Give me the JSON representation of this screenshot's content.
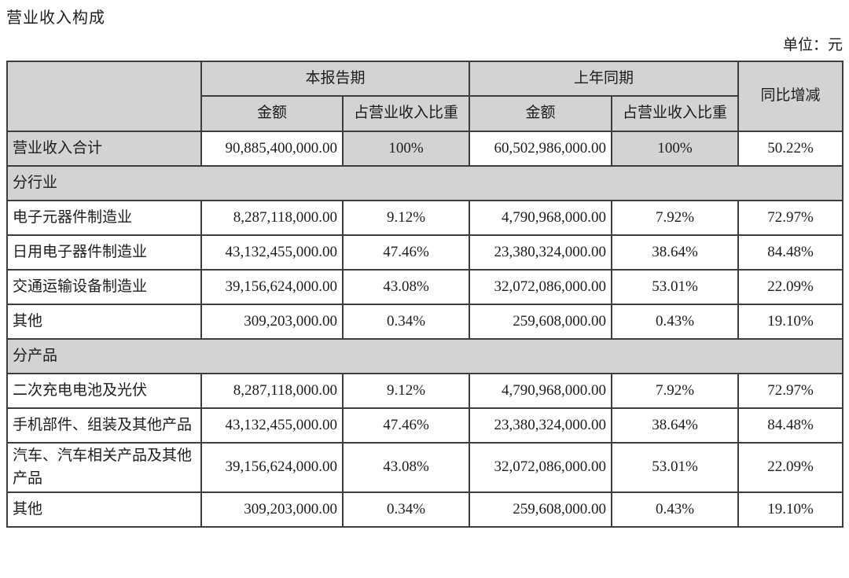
{
  "page": {
    "title": "营业收入构成",
    "unit_label": "单位：元"
  },
  "colors": {
    "header_bg": "#d3d3d3",
    "border": "#3d3d3d",
    "text": "#1c1c1c",
    "page_bg": "#ffffff"
  },
  "table": {
    "header": {
      "corner": "",
      "current_period_group": "本报告期",
      "prior_period_group": "上年同期",
      "yoy_change": "同比增减",
      "sub_headers": [
        "金额",
        "占营业收入比重",
        "金额",
        "占营业收入比重"
      ]
    },
    "rows": [
      {
        "type": "total",
        "label": "营业收入合计",
        "cells": [
          "90,885,400,000.00",
          "100%",
          "60,502,986,000.00",
          "100%",
          "50.22%"
        ]
      },
      {
        "type": "section",
        "label": "分行业"
      },
      {
        "type": "data",
        "label": "电子元器件制造业",
        "cells": [
          "8,287,118,000.00",
          "9.12%",
          "4,790,968,000.00",
          "7.92%",
          "72.97%"
        ]
      },
      {
        "type": "data",
        "label": "日用电子器件制造业",
        "cells": [
          "43,132,455,000.00",
          "47.46%",
          "23,380,324,000.00",
          "38.64%",
          "84.48%"
        ]
      },
      {
        "type": "data",
        "label": "交通运输设备制造业",
        "cells": [
          "39,156,624,000.00",
          "43.08%",
          "32,072,086,000.00",
          "53.01%",
          "22.09%"
        ]
      },
      {
        "type": "data",
        "label": "其他",
        "cells": [
          "309,203,000.00",
          "0.34%",
          "259,608,000.00",
          "0.43%",
          "19.10%"
        ]
      },
      {
        "type": "section",
        "label": "分产品"
      },
      {
        "type": "data",
        "label": "二次充电电池及光伏",
        "cells": [
          "8,287,118,000.00",
          "9.12%",
          "4,790,968,000.00",
          "7.92%",
          "72.97%"
        ]
      },
      {
        "type": "data",
        "label": "手机部件、组装及其他产品",
        "cells": [
          "43,132,455,000.00",
          "47.46%",
          "23,380,324,000.00",
          "38.64%",
          "84.48%"
        ]
      },
      {
        "type": "data",
        "label": "汽车、汽车相关产品及其他产品",
        "cells": [
          "39,156,624,000.00",
          "43.08%",
          "32,072,086,000.00",
          "53.01%",
          "22.09%"
        ]
      },
      {
        "type": "data",
        "label": "其他",
        "cells": [
          "309,203,000.00",
          "0.34%",
          "259,608,000.00",
          "0.43%",
          "19.10%"
        ]
      }
    ]
  }
}
